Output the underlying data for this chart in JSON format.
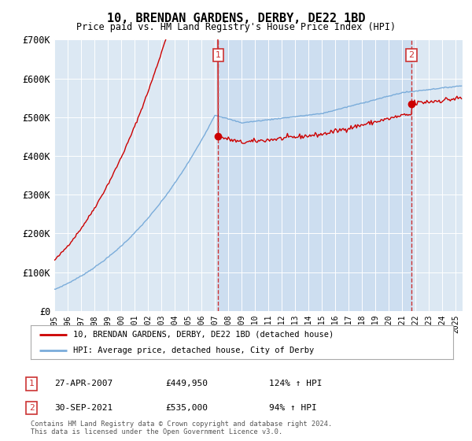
{
  "title": "10, BRENDAN GARDENS, DERBY, DE22 1BD",
  "subtitle": "Price paid vs. HM Land Registry's House Price Index (HPI)",
  "legend_line1": "10, BRENDAN GARDENS, DERBY, DE22 1BD (detached house)",
  "legend_line2": "HPI: Average price, detached house, City of Derby",
  "annotation1_date": "27-APR-2007",
  "annotation1_price": "£449,950",
  "annotation1_hpi": "124% ↑ HPI",
  "annotation2_date": "30-SEP-2021",
  "annotation2_price": "£535,000",
  "annotation2_hpi": "94% ↑ HPI",
  "footnote": "Contains HM Land Registry data © Crown copyright and database right 2024.\nThis data is licensed under the Open Government Licence v3.0.",
  "red_color": "#cc0000",
  "blue_color": "#7aacda",
  "bg_color": "#dce8f3",
  "shade_color": "#ccddf0",
  "annotation_box_color": "#cc3333",
  "grid_color": "#ffffff",
  "ylim": [
    0,
    700000
  ],
  "yticks": [
    0,
    100000,
    200000,
    300000,
    400000,
    500000,
    600000,
    700000
  ],
  "ytick_labels": [
    "£0",
    "£100K",
    "£200K",
    "£300K",
    "£400K",
    "£500K",
    "£600K",
    "£700K"
  ],
  "xstart": 1995,
  "xend": 2025,
  "sale1_t": 2007.25,
  "sale1_v": 449950,
  "sale2_t": 2021.67,
  "sale2_v": 535000
}
